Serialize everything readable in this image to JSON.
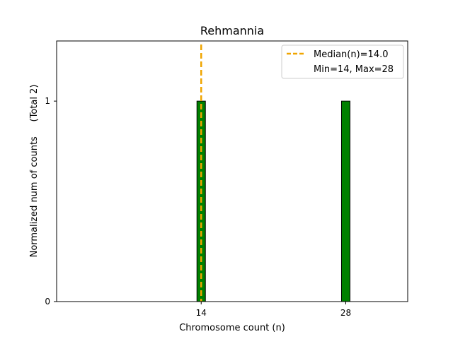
{
  "chart_data": {
    "type": "bar",
    "title": "Rehmannia",
    "xlabel": "Chromosome count (n)",
    "ylabel": "Normalized num of counts     (Total 2)",
    "x": [
      14,
      28
    ],
    "values": [
      1,
      1
    ],
    "xlim": [
      0,
      34
    ],
    "ylim": [
      0,
      1.3
    ],
    "xticks": [
      "14",
      "28"
    ],
    "yticks": [
      "0",
      "1"
    ],
    "bar_color": "#008000",
    "bar_edge_color": "#000000",
    "median": 14.0,
    "median_color": "#f0a500",
    "legend_position": "top-right",
    "legend": [
      {
        "label": "Median(n)=14.0",
        "style": "dashed-line"
      },
      {
        "label": "Min=14, Max=28",
        "style": "none"
      }
    ]
  }
}
